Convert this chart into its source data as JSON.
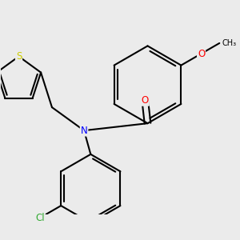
{
  "background_color": "#ebebeb",
  "atom_colors": {
    "S": "#cccc00",
    "N": "#0000ff",
    "O": "#ff0000",
    "Cl": "#33aa33",
    "C": "#000000"
  },
  "bond_color": "#000000",
  "bond_width": 1.5,
  "dbo": 0.055,
  "fs": 8.5
}
